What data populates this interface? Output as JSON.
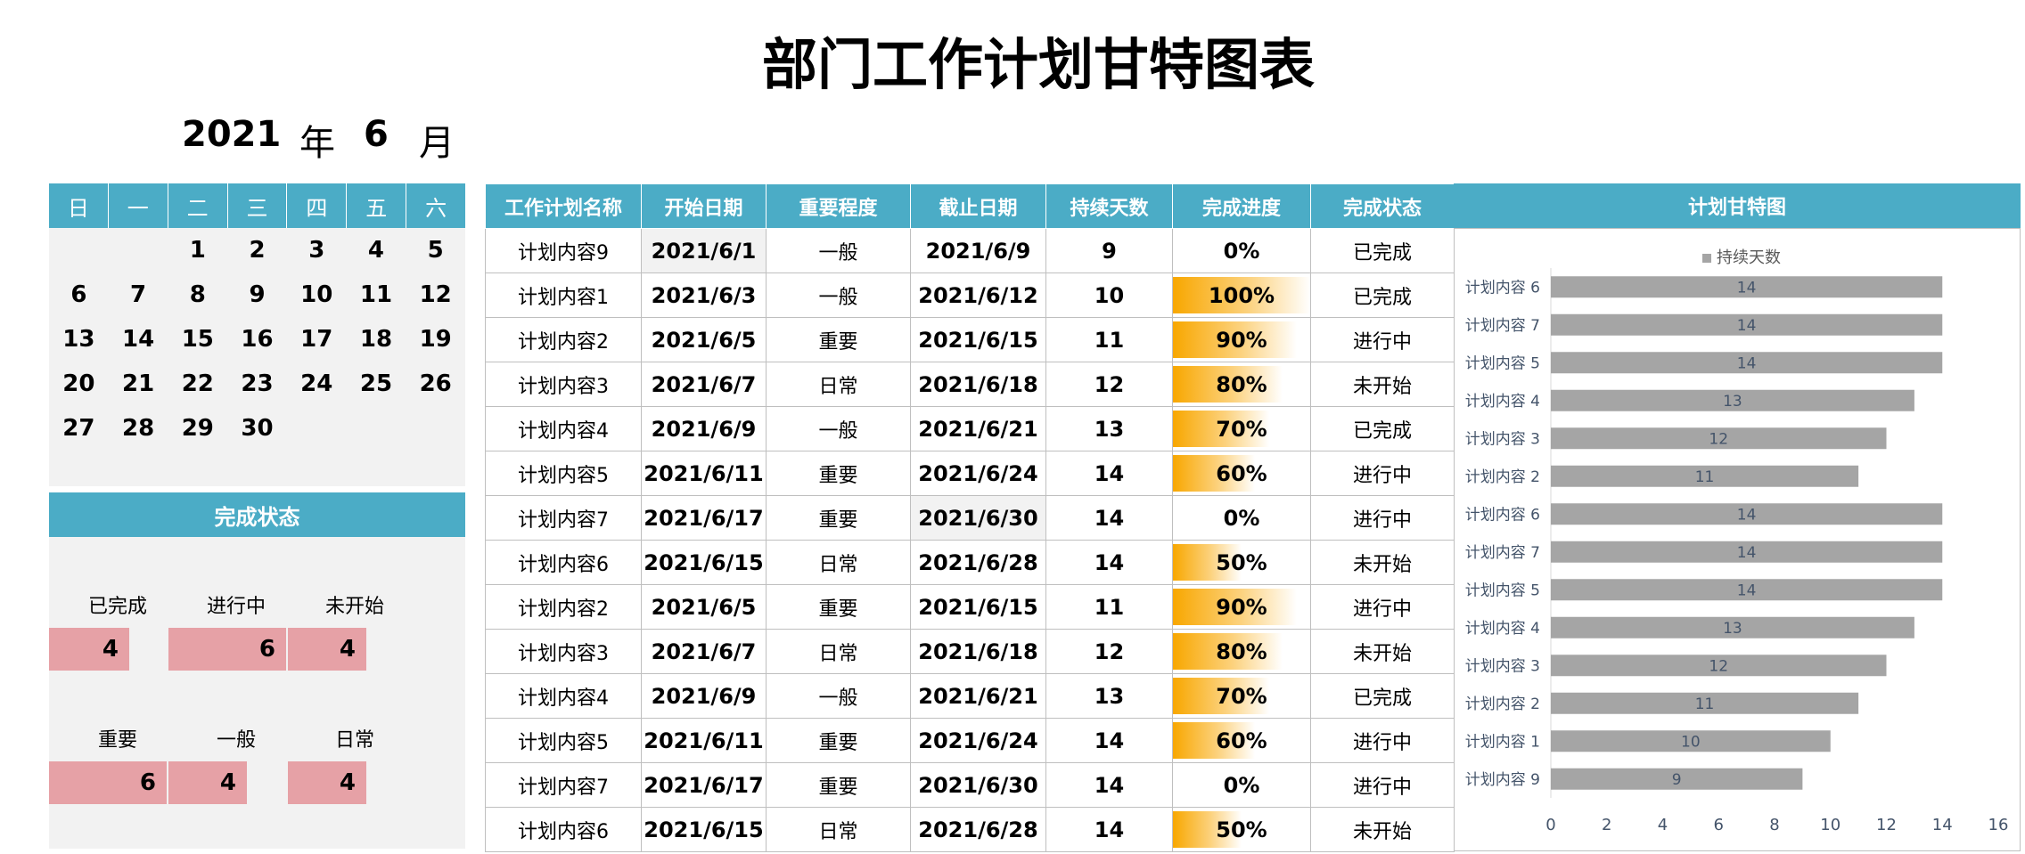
{
  "title": "部门工作计划甘特图表",
  "year": "2021",
  "year_label": "年",
  "month": "6",
  "month_label": "月",
  "calendar": {
    "weekdays": [
      "日",
      "一",
      "二",
      "三",
      "四",
      "五",
      "六"
    ],
    "weeks": [
      [
        "",
        "",
        "1",
        "2",
        "3",
        "4",
        "5"
      ],
      [
        "6",
        "7",
        "8",
        "9",
        "10",
        "11",
        "12"
      ],
      [
        "13",
        "14",
        "15",
        "16",
        "17",
        "18",
        "19"
      ],
      [
        "20",
        "21",
        "22",
        "23",
        "24",
        "25",
        "26"
      ],
      [
        "27",
        "28",
        "29",
        "30",
        "",
        "",
        ""
      ]
    ]
  },
  "status": {
    "header": "完成状态",
    "row1": [
      {
        "label": "已完成",
        "value": "4"
      },
      {
        "label": "进行中",
        "value": "6"
      },
      {
        "label": "未开始",
        "value": "4"
      }
    ],
    "row2": [
      {
        "label": "重要",
        "value": "6"
      },
      {
        "label": "一般",
        "value": "4"
      },
      {
        "label": "日常",
        "value": "4"
      }
    ]
  },
  "table": {
    "headers": [
      "工作计划名称",
      "开始日期",
      "重要程度",
      "截止日期",
      "持续天数",
      "完成进度",
      "完成状态"
    ],
    "rows": [
      {
        "name": "计划内容9",
        "start": "2021/6/1",
        "importance": "一般",
        "end": "2021/6/9",
        "days": "9",
        "progress": "0%",
        "progress_value": 0,
        "state": "已完成"
      },
      {
        "name": "计划内容1",
        "start": "2021/6/3",
        "importance": "一般",
        "end": "2021/6/12",
        "days": "10",
        "progress": "100%",
        "progress_value": 1.0,
        "state": "已完成"
      },
      {
        "name": "计划内容2",
        "start": "2021/6/5",
        "importance": "重要",
        "end": "2021/6/15",
        "days": "11",
        "progress": "90%",
        "progress_value": 0.9,
        "state": "进行中"
      },
      {
        "name": "计划内容3",
        "start": "2021/6/7",
        "importance": "日常",
        "end": "2021/6/18",
        "days": "12",
        "progress": "80%",
        "progress_value": 0.8,
        "state": "未开始"
      },
      {
        "name": "计划内容4",
        "start": "2021/6/9",
        "importance": "一般",
        "end": "2021/6/21",
        "days": "13",
        "progress": "70%",
        "progress_value": 0.7,
        "state": "已完成"
      },
      {
        "name": "计划内容5",
        "start": "2021/6/11",
        "importance": "重要",
        "end": "2021/6/24",
        "days": "14",
        "progress": "60%",
        "progress_value": 0.6,
        "state": "进行中"
      },
      {
        "name": "计划内容7",
        "start": "2021/6/17",
        "importance": "重要",
        "end": "2021/6/30",
        "days": "14",
        "progress": "0%",
        "progress_value": 0,
        "state": "进行中"
      },
      {
        "name": "计划内容6",
        "start": "2021/6/15",
        "importance": "日常",
        "end": "2021/6/28",
        "days": "14",
        "progress": "50%",
        "progress_value": 0.5,
        "state": "未开始"
      },
      {
        "name": "计划内容2",
        "start": "2021/6/5",
        "importance": "重要",
        "end": "2021/6/15",
        "days": "11",
        "progress": "90%",
        "progress_value": 0.9,
        "state": "进行中"
      },
      {
        "name": "计划内容3",
        "start": "2021/6/7",
        "importance": "日常",
        "end": "2021/6/18",
        "days": "12",
        "progress": "80%",
        "progress_value": 0.8,
        "state": "未开始"
      },
      {
        "name": "计划内容4",
        "start": "2021/6/9",
        "importance": "一般",
        "end": "2021/6/21",
        "days": "13",
        "progress": "70%",
        "progress_value": 0.7,
        "state": "已完成"
      },
      {
        "name": "计划内容5",
        "start": "2021/6/11",
        "importance": "重要",
        "end": "2021/6/24",
        "days": "14",
        "progress": "60%",
        "progress_value": 0.6,
        "state": "进行中"
      },
      {
        "name": "计划内容7",
        "start": "2021/6/17",
        "importance": "重要",
        "end": "2021/6/30",
        "days": "14",
        "progress": "0%",
        "progress_value": 0,
        "state": "进行中"
      },
      {
        "name": "计划内容6",
        "start": "2021/6/15",
        "importance": "日常",
        "end": "2021/6/28",
        "days": "14",
        "progress": "50%",
        "progress_value": 0.5,
        "state": "未开始"
      }
    ]
  },
  "gantt_header": "计划甘特图",
  "chart_data": {
    "type": "bar",
    "orientation": "horizontal",
    "categories": [
      "计划内容 6",
      "计划内容 7",
      "计划内容 5",
      "计划内容 4",
      "计划内容 3",
      "计划内容 2",
      "计划内容 6",
      "计划内容 7",
      "计划内容 5",
      "计划内容 4",
      "计划内容 3",
      "计划内容 2",
      "计划内容 1",
      "计划内容 9"
    ],
    "series": [
      {
        "name": "持续天数",
        "values": [
          14,
          14,
          14,
          13,
          12,
          11,
          14,
          14,
          14,
          13,
          12,
          11,
          10,
          9
        ]
      }
    ],
    "xlim": [
      0,
      16
    ],
    "xticks": [
      "0",
      "2",
      "4",
      "6",
      "8",
      "10",
      "12",
      "14",
      "16"
    ],
    "legend": "top",
    "grid": false,
    "bar_color": "#a5a5a5",
    "label_color": "#44546a"
  },
  "colors": {
    "header": "#4bacc6",
    "badge": "#e6a1a6",
    "progress": "#f8a700"
  }
}
